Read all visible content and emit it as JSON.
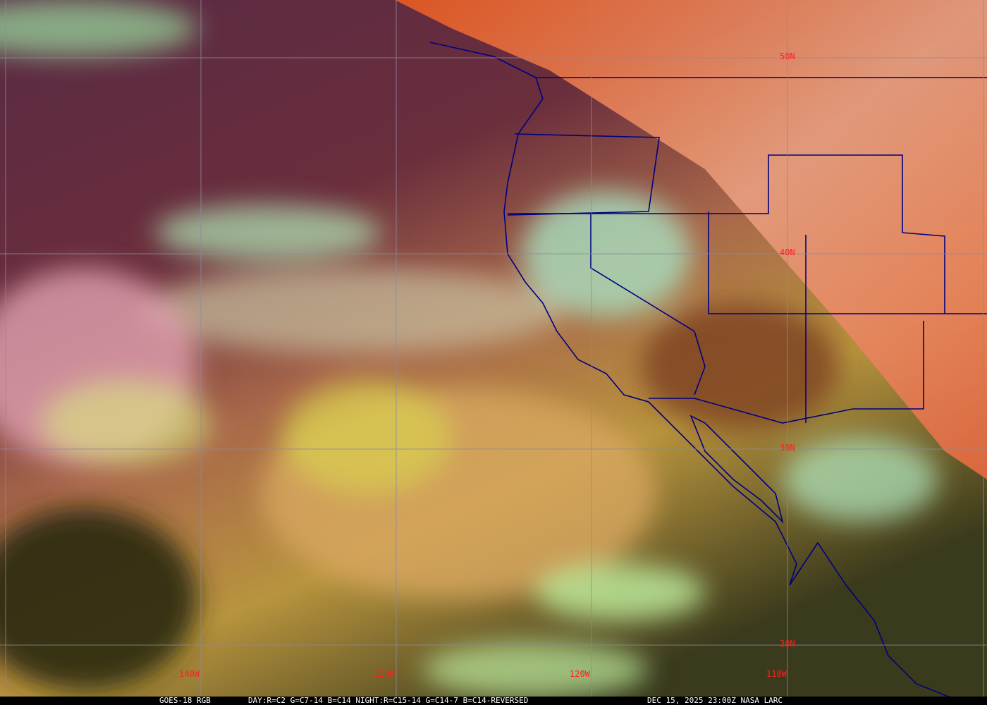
{
  "image": {
    "satellite": "GOES-18",
    "product": "RGB",
    "recipe": "DAY:R=C2 G=C7-14 B=C14 NIGHT:R=C15-14 G=C14-7 B=C14-REVERSED",
    "datetime": "DEC 15, 2025 23:00Z",
    "credit": "NASA LARC"
  },
  "caption": {
    "left": "GOES-18 RGB",
    "recipe": "DAY:R=C2 G=C7-14 B=C14 NIGHT:R=C15-14 G=C14-7 B=C14-REVERSED",
    "right": "DEC 15, 2025 23:00Z NASA LARC"
  },
  "grid": {
    "latitudes": [
      "50N",
      "40N",
      "30N",
      "20N"
    ],
    "longitudes": [
      "140W",
      "130W",
      "120W",
      "110W"
    ]
  },
  "colors": {
    "grid": "#8a8aa0",
    "labels": "#ff2020",
    "borders": "#000080",
    "caption_bg": "#000000",
    "caption_text": "#ffffff"
  }
}
